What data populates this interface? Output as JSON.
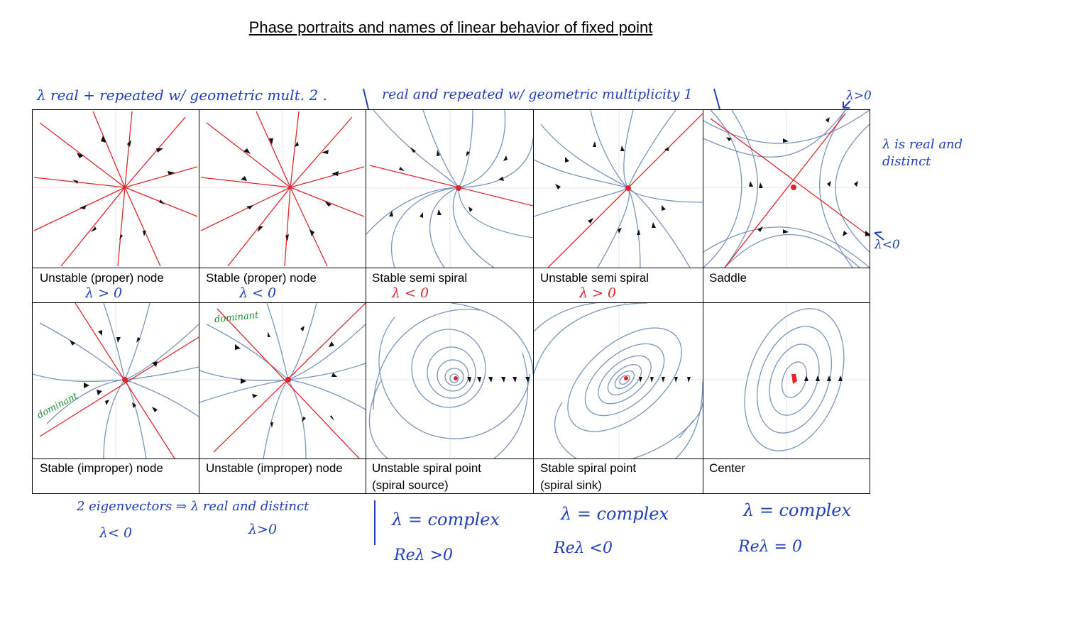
{
  "title": "Phase portraits and names of linear behavior of fixed point",
  "colors": {
    "eigen": "#e0262b",
    "flow": "#7a94be",
    "ink": "#1f3fbf",
    "green": "#1b8a2a"
  },
  "top_notes": {
    "left": "λ real + repeated w/ geometric mult. 2 .",
    "mid": "real and repeated w/ geometric multiplicity 1",
    "saddle_up": "λ>0",
    "right": "λ is real and distinct",
    "saddle_down": "λ<0"
  },
  "row1": [
    {
      "label": "Unstable (proper) node",
      "note": "λ > 0"
    },
    {
      "label": "Stable (proper) node",
      "note": "λ < 0"
    },
    {
      "label": "Stable semi spiral",
      "note": "λ < 0"
    },
    {
      "label": "Unstable semi spiral",
      "note": "λ > 0"
    },
    {
      "label": "Saddle",
      "note": ""
    }
  ],
  "row2": [
    {
      "label": "Stable (improper) node",
      "note": "dominant"
    },
    {
      "label": "Unstable (improper) node",
      "note": "dominant"
    },
    {
      "label_line1": "Unstable spiral point",
      "label_line2": "(spiral source)"
    },
    {
      "label_line1": "Stable spiral point",
      "label_line2": "(spiral sink)"
    },
    {
      "label": "Center"
    }
  ],
  "bottom_notes": {
    "eigvec": "2 eigenvectors ⇒ λ real and distinct",
    "neg": "λ< 0",
    "pos": "λ>0",
    "c1": "λ = complex",
    "c1b": "Reλ >0",
    "c2": "λ = complex",
    "c2b": "Reλ <0",
    "c3": "λ = complex",
    "c3b": "Reλ = 0"
  }
}
